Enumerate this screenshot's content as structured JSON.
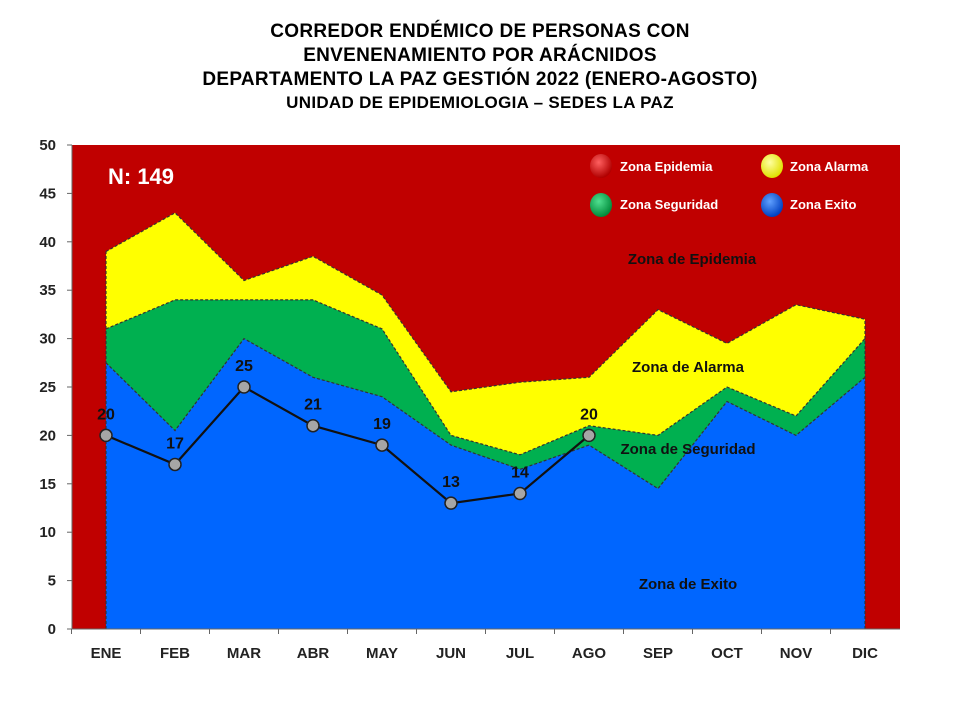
{
  "title": {
    "line1": "CORREDOR ENDÉMICO DE PERSONAS CON",
    "line2": "ENVENENAMIENTO POR ARÁCNIDOS",
    "line3": "DEPARTAMENTO LA PAZ GESTIÓN 2022 (ENERO-AGOSTO)",
    "subtitle": "UNIDAD DE EPIDEMIOLOGIA – SEDES LA PAZ"
  },
  "colors": {
    "epidemia": "#C00000",
    "alarma": "#FFFF00",
    "seguridad": "#00B050",
    "exito": "#0066FF",
    "line": "#111111",
    "marker": "#A6A6A6"
  },
  "n_label": "N: 149",
  "legend": [
    {
      "label": "Zona Epidemia",
      "color": "#E00000",
      "icon": "red-circle-icon"
    },
    {
      "label": "Zona Alarma",
      "color": "#FFFF00",
      "icon": "yellow-circle-icon"
    },
    {
      "label": "Zona Seguridad",
      "color": "#00B050",
      "icon": "green-circle-icon"
    },
    {
      "label": "Zona Exito",
      "color": "#1E6BFF",
      "icon": "blue-circle-icon"
    }
  ],
  "zone_labels": {
    "epidemia": "Zona de Epidemia",
    "alarma": "Zona de Alarma",
    "seguridad": "Zona de Seguridad",
    "exito": "Zona de Exito"
  },
  "chart_data": {
    "type": "area",
    "categories": [
      "ENE",
      "FEB",
      "MAR",
      "ABR",
      "MAY",
      "JUN",
      "JUL",
      "AGO",
      "SEP",
      "OCT",
      "NOV",
      "DIC"
    ],
    "ylim": [
      0,
      50
    ],
    "yticks": [
      0,
      5,
      10,
      15,
      20,
      25,
      30,
      35,
      40,
      45,
      50
    ],
    "series": [
      {
        "name": "Zona Exito",
        "values": [
          27.5,
          20.5,
          30,
          26,
          24,
          19,
          16.5,
          19,
          14.5,
          23.5,
          20,
          26
        ]
      },
      {
        "name": "Zona Seguridad",
        "values": [
          31,
          34,
          34,
          34,
          31,
          20,
          18,
          21,
          20,
          25,
          22,
          30
        ]
      },
      {
        "name": "Zona Alarma",
        "values": [
          39,
          43,
          36,
          38.5,
          34.5,
          24.5,
          25.5,
          26,
          33,
          29.5,
          33.5,
          32
        ]
      },
      {
        "name": "Zona Epidemia",
        "values": [
          50,
          50,
          50,
          50,
          50,
          50,
          50,
          50,
          50,
          50,
          50,
          50
        ]
      }
    ],
    "cases": {
      "categories": [
        "ENE",
        "FEB",
        "MAR",
        "ABR",
        "MAY",
        "JUN",
        "JUL",
        "AGO"
      ],
      "values": [
        20,
        17,
        25,
        21,
        19,
        13,
        14,
        20
      ]
    },
    "grid": false,
    "legend_position": "top-right"
  }
}
